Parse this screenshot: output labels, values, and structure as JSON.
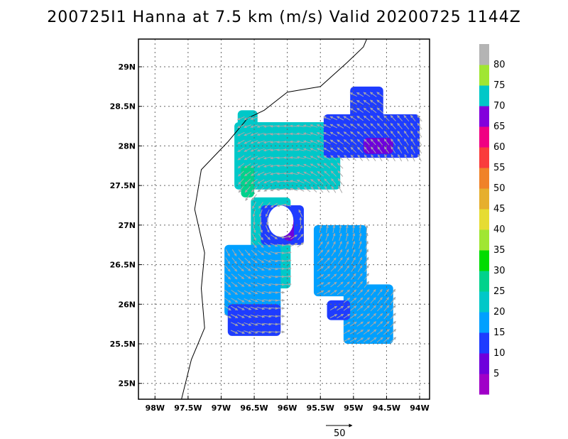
{
  "title": "200725I1 Hanna at 7.5 km (m/s) Valid 20200725 1144Z",
  "map": {
    "lon_range": [
      -98.25,
      -93.85
    ],
    "lat_range": [
      24.8,
      29.35
    ],
    "lon_ticks": [
      {
        "value": -98.0,
        "label": "98W"
      },
      {
        "value": -97.5,
        "label": "97.5W"
      },
      {
        "value": -97.0,
        "label": "97W"
      },
      {
        "value": -96.5,
        "label": "96.5W"
      },
      {
        "value": -96.0,
        "label": "96W"
      },
      {
        "value": -95.5,
        "label": "95.5W"
      },
      {
        "value": -95.0,
        "label": "95W"
      },
      {
        "value": -94.5,
        "label": "94.5W"
      },
      {
        "value": -94.0,
        "label": "94W"
      }
    ],
    "lat_ticks": [
      {
        "value": 25.0,
        "label": "25N"
      },
      {
        "value": 25.5,
        "label": "25.5N"
      },
      {
        "value": 26.0,
        "label": "26N"
      },
      {
        "value": 26.5,
        "label": "26.5N"
      },
      {
        "value": 27.0,
        "label": "27N"
      },
      {
        "value": 27.5,
        "label": "27.5N"
      },
      {
        "value": 28.0,
        "label": "28N"
      },
      {
        "value": 28.5,
        "label": "28.5N"
      },
      {
        "value": 29.0,
        "label": "29N"
      }
    ],
    "grid": "dotted",
    "storm_center": {
      "lon": -96.05,
      "lat": 27.05
    },
    "coastline": [
      [
        -97.6,
        24.8
      ],
      [
        -97.45,
        25.3
      ],
      [
        -97.25,
        25.7
      ],
      [
        -97.3,
        26.2
      ],
      [
        -97.25,
        26.65
      ],
      [
        -97.4,
        27.2
      ],
      [
        -97.3,
        27.7
      ],
      [
        -96.9,
        28.05
      ],
      [
        -96.6,
        28.35
      ],
      [
        -96.35,
        28.45
      ],
      [
        -96.0,
        28.68
      ],
      [
        -95.5,
        28.75
      ],
      [
        -95.1,
        29.05
      ],
      [
        -94.85,
        29.25
      ],
      [
        -94.8,
        29.35
      ]
    ]
  },
  "vector_reference": {
    "label": "50",
    "value": 50
  },
  "colorbar": {
    "label_ticks": [
      "5",
      "10",
      "15",
      "20",
      "25",
      "30",
      "35",
      "40",
      "45",
      "50",
      "55",
      "60",
      "65",
      "70",
      "75",
      "80"
    ],
    "colors": [
      "#a000c8",
      "#6e00dc",
      "#1e3cff",
      "#00a0ff",
      "#00c8c8",
      "#00d28c",
      "#00dc00",
      "#a0e632",
      "#e6dc32",
      "#e6af2d",
      "#f08228",
      "#fa3c3c",
      "#f00082",
      "#8200dc",
      "#00c8c8",
      "#a0e632",
      "#b4b4b4"
    ]
  },
  "chart_data": {
    "type": "heatmap",
    "title": "200725I1 Hanna at 7.5 km (m/s) Valid 20200725 1144Z",
    "x_ticks": [
      "98W",
      "97.5W",
      "97W",
      "96.5W",
      "96W",
      "95.5W",
      "95W",
      "94.5W",
      "94W"
    ],
    "y_ticks": [
      "25N",
      "25.5N",
      "26N",
      "26.5N",
      "27N",
      "27.5N",
      "28N",
      "28.5N",
      "29N"
    ],
    "colorbar_ticks": [
      5,
      10,
      15,
      20,
      25,
      30,
      35,
      40,
      45,
      50,
      55,
      60,
      65,
      70,
      75,
      80
    ],
    "wind_regions": [
      {
        "lon": [
          -96.8,
          -95.2
        ],
        "lat": [
          27.45,
          28.3
        ],
        "speed": 22
      },
      {
        "lon": [
          -96.75,
          -96.45
        ],
        "lat": [
          28.2,
          28.45
        ],
        "speed": 22
      },
      {
        "lon": [
          -96.7,
          -96.5
        ],
        "lat": [
          27.35,
          27.75
        ],
        "speed": 28
      },
      {
        "lon": [
          -95.45,
          -94.0
        ],
        "lat": [
          27.85,
          28.4
        ],
        "speed": 12
      },
      {
        "lon": [
          -94.85,
          -94.4
        ],
        "lat": [
          27.9,
          28.1
        ],
        "speed": 5
      },
      {
        "lon": [
          -95.05,
          -94.55
        ],
        "lat": [
          28.3,
          28.75
        ],
        "speed": 12
      },
      {
        "lon": [
          -96.55,
          -95.95
        ],
        "lat": [
          26.2,
          27.35
        ],
        "speed": 22
      },
      {
        "lon": [
          -96.95,
          -96.1
        ],
        "lat": [
          25.85,
          26.75
        ],
        "speed": 18
      },
      {
        "lon": [
          -96.9,
          -96.1
        ],
        "lat": [
          25.6,
          26.0
        ],
        "speed": 12
      },
      {
        "lon": [
          -95.6,
          -94.8
        ],
        "lat": [
          26.1,
          27.0
        ],
        "speed": 17
      },
      {
        "lon": [
          -95.15,
          -94.4
        ],
        "lat": [
          25.5,
          26.25
        ],
        "speed": 17
      },
      {
        "lon": [
          -95.4,
          -95.05
        ],
        "lat": [
          25.8,
          26.05
        ],
        "speed": 12
      },
      {
        "lon": [
          -96.4,
          -95.75
        ],
        "lat": [
          26.75,
          27.25
        ],
        "speed": 12
      },
      {
        "lon": [
          -96.05,
          -95.9
        ],
        "lat": [
          26.8,
          27.1
        ],
        "speed": 6
      }
    ]
  }
}
